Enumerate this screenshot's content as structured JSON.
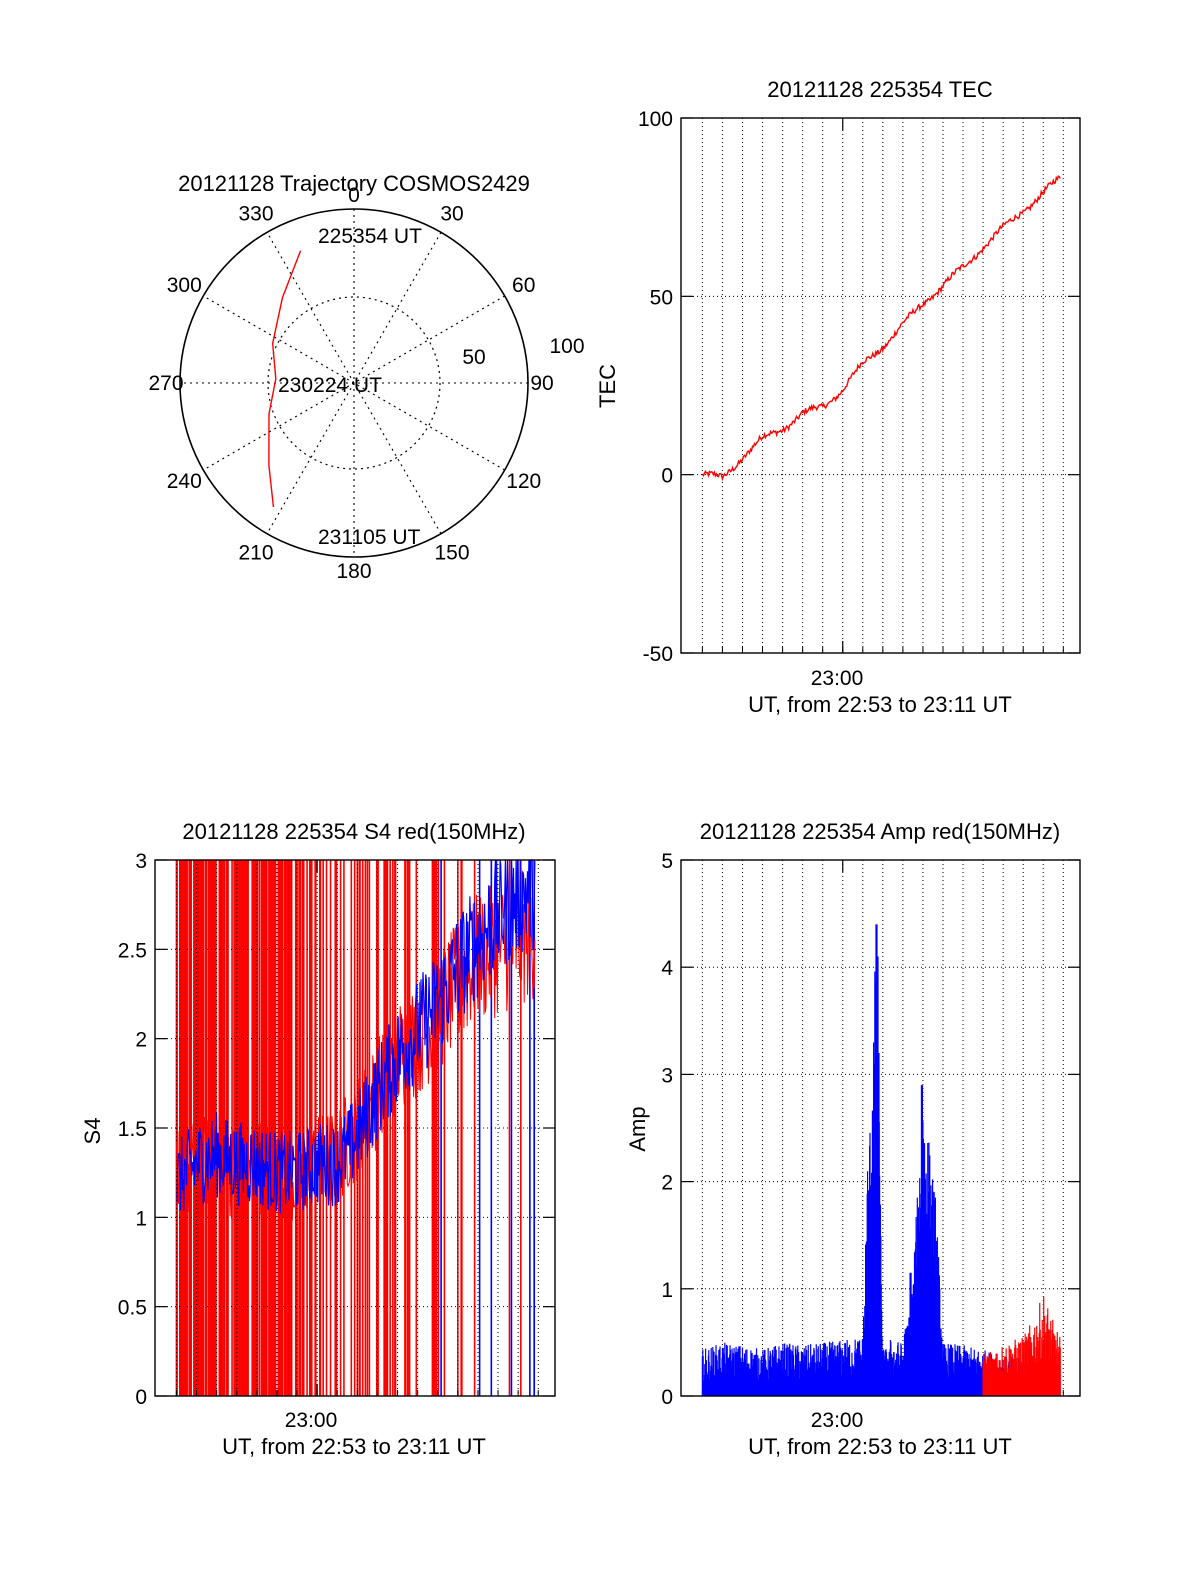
{
  "colors": {
    "red": "#ff0000",
    "blue": "#0000ff",
    "axis": "#000000",
    "grid": "#000000"
  },
  "chart_data": [
    {
      "id": "trajectory",
      "type": "polar",
      "title": "20121128 Trajectory COSMOS2429",
      "azimuth_labels": [
        "0",
        "30",
        "60",
        "90",
        "120",
        "150",
        "180",
        "210",
        "240",
        "270",
        "300",
        "330"
      ],
      "radial_ticks": [
        {
          "label": "50",
          "value": 50
        },
        {
          "label": "100",
          "value": 100
        }
      ],
      "rlim": [
        0,
        100
      ],
      "grid": true,
      "annotations": [
        {
          "text": "225354 UT",
          "ref": "start"
        },
        {
          "text": "230224 UT",
          "ref": "mid"
        },
        {
          "text": "231105 UT",
          "ref": "end"
        }
      ],
      "series": [
        {
          "color": "red",
          "points": [
            {
              "az": 338,
              "r": 82
            },
            {
              "az": 320,
              "r": 64
            },
            {
              "az": 296,
              "r": 52
            },
            {
              "az": 273,
              "r": 45
            },
            {
              "az": 250,
              "r": 52
            },
            {
              "az": 226,
              "r": 68
            },
            {
              "az": 213,
              "r": 85
            }
          ]
        }
      ]
    },
    {
      "id": "tec",
      "type": "line",
      "title": "20121128 225354 TEC",
      "xlabel": "UT, from 22:53 to 23:11 UT",
      "ylabel": "TEC",
      "x_tick_label": "23:00",
      "x_tick_value": 420,
      "xlim": [
        -64,
        1130
      ],
      "ylim": [
        -50,
        100
      ],
      "y_ticks": [
        -50,
        0,
        50,
        100
      ],
      "grid": true,
      "x_grid_step": 60,
      "series": [
        {
          "color": "red",
          "x": [
            0,
            60,
            120,
            180,
            240,
            300,
            360,
            420,
            480,
            540,
            600,
            660,
            720,
            780,
            840,
            900,
            960,
            1020,
            1071
          ],
          "y": [
            0,
            -1,
            5,
            10,
            13,
            17,
            19,
            24,
            31,
            36,
            42,
            48,
            53,
            58,
            64,
            69,
            74,
            79,
            83
          ]
        }
      ]
    },
    {
      "id": "s4",
      "type": "line",
      "title": "20121128 225354 S4 red(150MHz)",
      "xlabel": "UT, from 22:53 to 23:11 UT",
      "ylabel": "S4",
      "x_tick_label": "23:00",
      "x_tick_value": 420,
      "xlim": [
        -64,
        1130
      ],
      "ylim": [
        0,
        3
      ],
      "y_ticks": [
        "0",
        "0.5",
        "1",
        "1.5",
        "2",
        "2.5",
        "3"
      ],
      "grid": true,
      "x_grid_step": 60,
      "series": [
        {
          "color": "blue",
          "x": [
            0,
            60,
            120,
            180,
            240,
            300,
            360,
            420,
            480,
            540,
            600,
            660,
            720,
            780,
            840,
            900,
            960,
            1020,
            1071
          ],
          "y": [
            1.2,
            1.3,
            1.35,
            1.3,
            1.3,
            1.25,
            1.25,
            1.3,
            1.3,
            1.45,
            1.7,
            1.9,
            2.05,
            2.2,
            2.4,
            2.55,
            2.7,
            2.8,
            2.85
          ]
        },
        {
          "color": "red",
          "x": [
            0,
            60,
            120,
            180,
            240,
            300,
            360,
            420,
            480,
            540,
            600,
            660,
            720,
            780,
            840,
            900,
            960,
            1020,
            1071
          ],
          "y": [
            1.2,
            1.3,
            1.3,
            1.25,
            1.3,
            1.25,
            1.2,
            1.3,
            1.35,
            1.5,
            1.7,
            1.9,
            2.0,
            2.15,
            2.3,
            2.45,
            2.5,
            2.55,
            2.6
          ]
        }
      ]
    },
    {
      "id": "amp",
      "type": "line",
      "title": "20121128 225354 Amp red(150MHz)",
      "xlabel": "UT, from 22:53 to 23:11 UT",
      "ylabel": "Amp",
      "x_tick_label": "23:00",
      "x_tick_value": 420,
      "xlim": [
        -64,
        1130
      ],
      "ylim": [
        0,
        5
      ],
      "y_ticks": [
        0,
        1,
        2,
        3,
        4,
        5
      ],
      "grid": true,
      "x_grid_step": 60,
      "series": [
        {
          "color": "blue",
          "x": [
            0,
            60,
            120,
            180,
            240,
            300,
            360,
            420,
            480,
            520,
            540,
            600,
            630,
            660,
            700,
            720,
            780,
            840,
            900,
            960,
            1020,
            1071
          ],
          "y": [
            0.35,
            0.4,
            0.38,
            0.35,
            0.4,
            0.38,
            0.4,
            0.42,
            0.45,
            4.4,
            0.45,
            0.4,
            1.1,
            2.9,
            1.8,
            0.4,
            0.38,
            0.35,
            0.3,
            0.28,
            0.25,
            0.25
          ]
        },
        {
          "color": "red",
          "x": [
            840,
            900,
            960,
            1000,
            1020,
            1050,
            1071
          ],
          "y": [
            0.3,
            0.35,
            0.4,
            0.55,
            0.7,
            0.5,
            0.4
          ]
        }
      ]
    }
  ]
}
